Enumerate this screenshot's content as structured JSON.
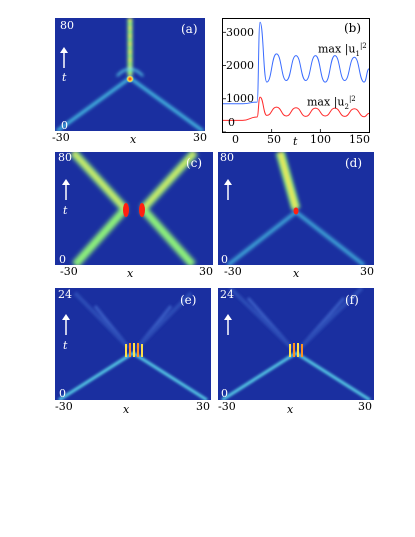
{
  "figure": {
    "panels": {
      "a": {
        "label": "(a)",
        "t_top": "80",
        "t_bottom": "0",
        "t_label": "t",
        "x_left": "-30",
        "x_right": "30",
        "x_label": "x"
      },
      "b": {
        "label": "(b)",
        "y_ticks": [
          "3000",
          "2000",
          "1000",
          "0"
        ],
        "x_ticks": [
          "0",
          "50",
          "100",
          "150"
        ],
        "x_label": "t",
        "legend_u1": "max |u",
        "legend_u1_sub": "1",
        "legend_u1_sup": "|2",
        "legend_u2": "max |u",
        "legend_u2_sub": "2",
        "legend_u2_sup": "|2"
      },
      "c": {
        "label": "(c)",
        "t_top": "80",
        "t_bottom": "0",
        "t_label": "t",
        "x_left": "-30",
        "x_right": "30",
        "x_label": "x"
      },
      "d": {
        "label": "(d)",
        "t_top": "80",
        "t_bottom": "0",
        "x_left": "-30",
        "x_right": "30",
        "x_label": "x"
      },
      "e": {
        "label": "(e)",
        "t_top": "24",
        "t_bottom": "0",
        "t_label": "t",
        "x_left": "-30",
        "x_right": "30",
        "x_label": "x"
      },
      "f": {
        "label": "(f)",
        "t_top": "24",
        "t_bottom": "0",
        "x_left": "-30",
        "x_right": "30",
        "x_label": "x"
      }
    },
    "colors": {
      "background": "#1a2fa0",
      "beam": "#5fe0f0",
      "peak": "#ff2010",
      "line_u1": "#3a6cff",
      "line_u2": "#ff2a2a"
    }
  },
  "chart_data": {
    "type": "line",
    "title": "",
    "xlabel": "t",
    "ylabel": "",
    "xlim": [
      0,
      150
    ],
    "ylim": [
      0,
      3400
    ],
    "x": [
      0,
      20,
      35,
      38,
      45,
      55,
      65,
      75,
      85,
      95,
      105,
      115,
      125,
      135,
      145,
      150
    ],
    "series": [
      {
        "name": "max |u1|2",
        "values": [
          850,
          850,
          900,
          3300,
          1500,
          2350,
          1550,
          2300,
          1550,
          2300,
          1500,
          2300,
          1550,
          2250,
          1500,
          1900
        ]
      },
      {
        "name": "max |u2|2",
        "values": [
          350,
          350,
          450,
          1050,
          500,
          750,
          480,
          730,
          470,
          720,
          480,
          720,
          470,
          700,
          460,
          560
        ]
      }
    ]
  }
}
